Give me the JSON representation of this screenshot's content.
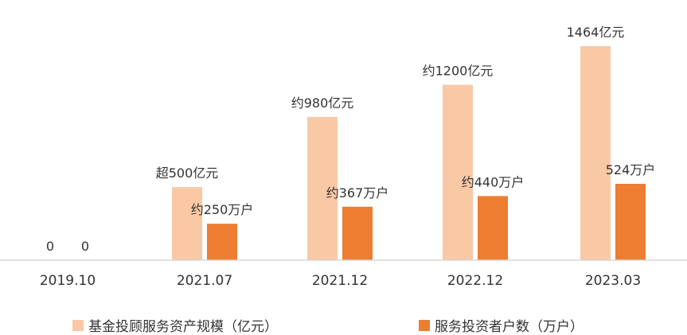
{
  "chart_data": {
    "type": "bar",
    "categories": [
      "2019.10",
      "2021.07",
      "2021.12",
      "2022.12",
      "2023.03"
    ],
    "series": [
      {
        "name": "基金投顾服务资产规模（亿元）",
        "color": "#f9c9a6",
        "values": [
          0,
          500,
          980,
          1200,
          1464
        ],
        "labels": [
          "0",
          "超500亿元",
          "约980亿元",
          "约1200亿元",
          "1464亿元"
        ]
      },
      {
        "name": "服务投资者户数（万户）",
        "color": "#ed7d31",
        "values": [
          0,
          250,
          367,
          440,
          524
        ],
        "labels": [
          "0",
          "约250万户",
          "约367万户",
          "约440万户",
          "524万户"
        ]
      }
    ],
    "grid": false,
    "legend": "bottom"
  }
}
